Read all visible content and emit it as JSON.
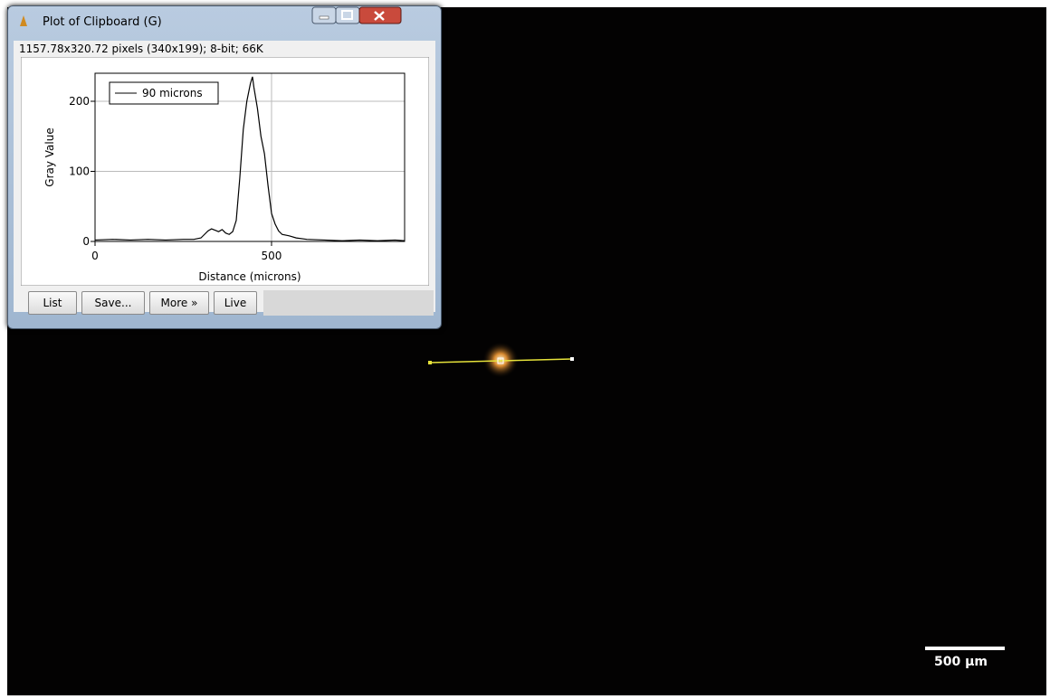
{
  "window": {
    "title": "Plot of Clipboard (G)",
    "info": "1157.78x320.72 pixels (340x199); 8-bit; 66K",
    "buttons": [
      "List",
      "Save...",
      "More »",
      "Live"
    ]
  },
  "chart_data": {
    "type": "line",
    "xlabel": "Distance (microns)",
    "ylabel": "Gray Value",
    "x": [
      0,
      50,
      100,
      150,
      200,
      250,
      280,
      300,
      310,
      320,
      330,
      340,
      350,
      360,
      370,
      380,
      390,
      400,
      410,
      420,
      430,
      440,
      446,
      450,
      460,
      470,
      480,
      490,
      500,
      510,
      520,
      530,
      550,
      570,
      600,
      650,
      700,
      750,
      800,
      850,
      877
    ],
    "series": [
      {
        "name": "90 microns",
        "color": "#000000",
        "values": [
          2,
          3,
          2,
          3,
          2,
          3,
          3,
          5,
          10,
          15,
          18,
          16,
          14,
          17,
          12,
          10,
          14,
          30,
          90,
          160,
          200,
          225,
          235,
          220,
          190,
          150,
          125,
          80,
          40,
          25,
          15,
          10,
          8,
          5,
          3,
          2,
          1,
          2,
          1,
          2,
          1
        ]
      }
    ],
    "xlim": [
      0,
      877
    ],
    "ylim": [
      0,
      240
    ],
    "xticks": [
      0,
      500
    ],
    "yticks": [
      0,
      100,
      200
    ],
    "grid": true,
    "legend": "upper left"
  },
  "scale_bar": {
    "label": "500 µm"
  }
}
